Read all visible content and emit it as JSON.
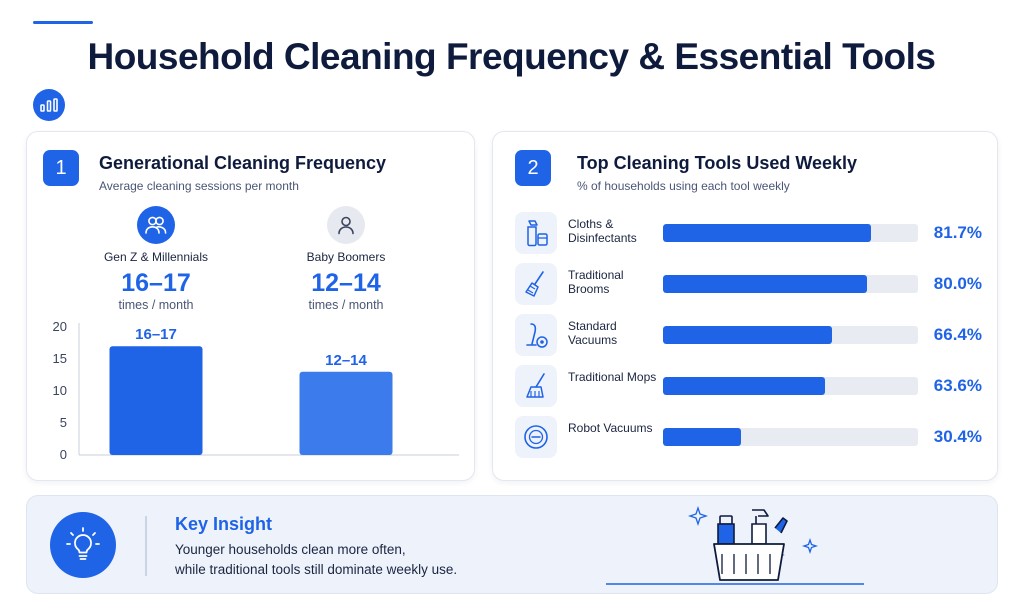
{
  "title": "Household Cleaning Frequency & Essential Tools",
  "icons": {
    "header": "bar-chart-icon",
    "group": "group-people-icon",
    "person": "person-icon",
    "insight": "lightbulb-icon",
    "tools": [
      "spray-bottle-icon",
      "broom-icon",
      "vacuum-icon",
      "mop-icon",
      "robot-vacuum-icon"
    ]
  },
  "colors": {
    "accent": "#1f63e6",
    "title": "#0f1b3d",
    "track": "#e8ecf2",
    "panel_bg": "#eef3fb"
  },
  "left_panel": {
    "number": "1",
    "title": "Generational Cleaning Frequency",
    "subtitle": "Average cleaning sessions per month",
    "groups": [
      {
        "label": "Gen Z & Millennials",
        "value": "16–17",
        "unit": "times / month"
      },
      {
        "label": "Baby Boomers",
        "value": "12–14",
        "unit": "times / month"
      }
    ]
  },
  "right_panel": {
    "number": "2",
    "title": "Top Cleaning Tools Used Weekly",
    "subtitle": "% of households using each tool weekly"
  },
  "chart_data": [
    {
      "type": "bar",
      "categories": [
        "Gen Z & Millennials",
        "Baby Boomers"
      ],
      "values": [
        17,
        13
      ],
      "labels": [
        "16–17",
        "12–14"
      ],
      "ylim": [
        0,
        20
      ],
      "yticks": [
        0,
        5,
        10,
        15,
        20
      ],
      "grid": false,
      "title": "",
      "xlabel": "",
      "ylabel": ""
    },
    {
      "type": "bar",
      "orientation": "horizontal",
      "categories": [
        "Cloths & Disinfectants",
        "Traditional Brooms",
        "Standard Vacuums",
        "Traditional Mops",
        "Robot Vacuums"
      ],
      "values": [
        81.7,
        80.0,
        66.4,
        63.6,
        30.4
      ],
      "labels": [
        "81.7%",
        "80.0%",
        "66.4%",
        "63.6%",
        "30.4%"
      ],
      "xlim": [
        0,
        100
      ],
      "title": "",
      "xlabel": "",
      "ylabel": ""
    }
  ],
  "insight": {
    "title": "Key Insight",
    "line1": "Younger households clean more often,",
    "line2": "while traditional tools still dominate weekly use."
  }
}
